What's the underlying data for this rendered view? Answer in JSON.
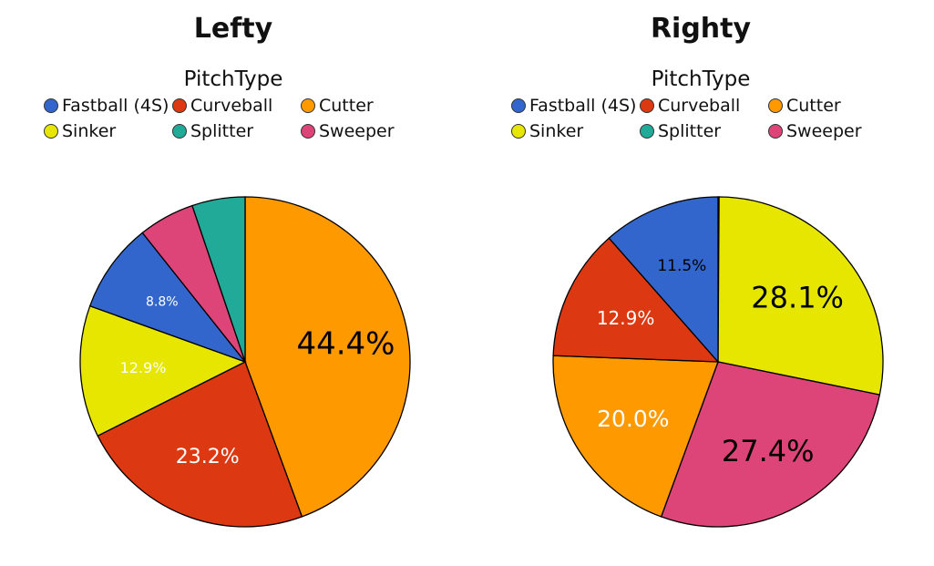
{
  "legend_title": "PitchType",
  "colors": {
    "Fastball (4S)": "#3366CC",
    "Curveball": "#DC3912",
    "Cutter": "#FF9900",
    "Sinker": "#E6E600",
    "Splitter": "#22AA99",
    "Sweeper": "#DD4477"
  },
  "legend_items": [
    "Fastball (4S)",
    "Curveball",
    "Cutter",
    "Sinker",
    "Splitter",
    "Sweeper"
  ],
  "chart_data": [
    {
      "type": "pie",
      "title": "Lefty",
      "legend_title": "PitchType",
      "start": "12 o'clock",
      "direction": "clockwise",
      "slices": [
        {
          "label": "Cutter",
          "value": 44.4,
          "text": "44.4%",
          "text_color": "#000000",
          "text_size": 34
        },
        {
          "label": "Curveball",
          "value": 23.2,
          "text": "23.2%",
          "text_color": "#ffffff",
          "text_size": 22
        },
        {
          "label": "Sinker",
          "value": 12.9,
          "text": "12.9%",
          "text_color": "#ffffff",
          "text_size": 16
        },
        {
          "label": "Fastball (4S)",
          "value": 8.8,
          "text": "8.8%",
          "text_color": "#ffffff",
          "text_size": 14
        },
        {
          "label": "Sweeper",
          "value": 5.5,
          "text": "",
          "text_color": "#ffffff",
          "text_size": 12
        },
        {
          "label": "Splitter",
          "value": 5.2,
          "text": "",
          "text_color": "#ffffff",
          "text_size": 12
        }
      ]
    },
    {
      "type": "pie",
      "title": "Righty",
      "legend_title": "PitchType",
      "start": "12 o'clock",
      "direction": "clockwise",
      "slices": [
        {
          "label": "Splitter",
          "value": 0.1,
          "text": "",
          "text_color": "#ffffff",
          "text_size": 12
        },
        {
          "label": "Sinker",
          "value": 28.1,
          "text": "28.1%",
          "text_color": "#000000",
          "text_size": 32
        },
        {
          "label": "Sweeper",
          "value": 27.4,
          "text": "27.4%",
          "text_color": "#000000",
          "text_size": 32
        },
        {
          "label": "Cutter",
          "value": 20.0,
          "text": "20.0%",
          "text_color": "#ffffff",
          "text_size": 25
        },
        {
          "label": "Curveball",
          "value": 12.9,
          "text": "12.9%",
          "text_color": "#ffffff",
          "text_size": 20
        },
        {
          "label": "Fastball (4S)",
          "value": 11.5,
          "text": "11.5%",
          "text_color": "#000000",
          "text_size": 17
        }
      ]
    }
  ]
}
